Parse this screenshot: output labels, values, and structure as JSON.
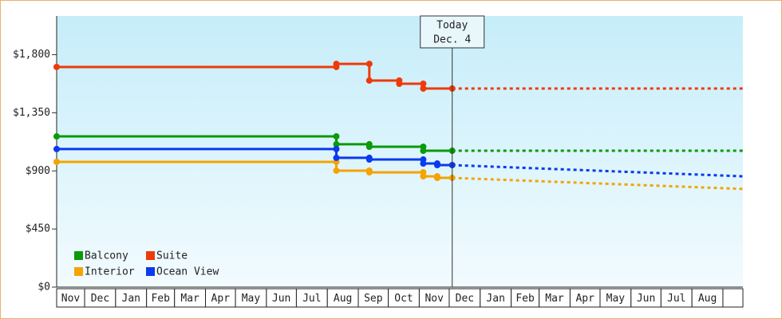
{
  "chart_data": {
    "type": "step",
    "ylim": [
      0,
      2100
    ],
    "yticks": [
      {
        "value": 0,
        "label": "$0"
      },
      {
        "value": 450,
        "label": "$450"
      },
      {
        "value": 900,
        "label": "$900"
      },
      {
        "value": 1350,
        "label": "$1,350"
      },
      {
        "value": 1800,
        "label": "$1,800"
      }
    ],
    "xlim": [
      2,
      689
    ],
    "xticks": [
      {
        "value": 0,
        "label": "Nov"
      },
      {
        "value": 30,
        "label": "Dec"
      },
      {
        "value": 61,
        "label": "Jan"
      },
      {
        "value": 92,
        "label": "Feb"
      },
      {
        "value": 120,
        "label": "Mar"
      },
      {
        "value": 151,
        "label": "Apr"
      },
      {
        "value": 181,
        "label": "May"
      },
      {
        "value": 212,
        "label": "Jun"
      },
      {
        "value": 242,
        "label": "Jul"
      },
      {
        "value": 273,
        "label": "Aug"
      },
      {
        "value": 304,
        "label": "Sep"
      },
      {
        "value": 334,
        "label": "Oct"
      },
      {
        "value": 365,
        "label": "Nov"
      },
      {
        "value": 395,
        "label": "Dec"
      },
      {
        "value": 426,
        "label": "Jan"
      },
      {
        "value": 457,
        "label": "Feb"
      },
      {
        "value": 485,
        "label": "Mar"
      },
      {
        "value": 516,
        "label": "Apr"
      },
      {
        "value": 546,
        "label": "May"
      },
      {
        "value": 577,
        "label": "Jun"
      },
      {
        "value": 607,
        "label": "Jul"
      },
      {
        "value": 638,
        "label": "Aug"
      }
    ],
    "today": {
      "x": 398,
      "label": "Today",
      "date": "Dec. 4"
    },
    "legend": "lower left",
    "series": [
      {
        "name": "Balcony",
        "color": "#0a9a0a",
        "x": [
          2,
          282,
          315,
          369,
          398
        ],
        "values": [
          1167,
          1106,
          1087,
          1056,
          1056
        ],
        "forecast": {
          "x": [
            398,
            689
          ],
          "values": [
            1056,
            1056
          ]
        }
      },
      {
        "name": "Suite",
        "color": "#ee3a0a",
        "x": [
          2,
          282,
          315,
          345,
          369,
          398
        ],
        "values": [
          1705,
          1729,
          1600,
          1575,
          1538,
          1538
        ],
        "forecast": {
          "x": [
            398,
            689
          ],
          "values": [
            1538,
            1538
          ]
        }
      },
      {
        "name": "Interior",
        "color": "#f5a300",
        "x": [
          2,
          282,
          315,
          369,
          383,
          398
        ],
        "values": [
          970,
          902,
          889,
          858,
          846,
          846
        ],
        "forecast": {
          "x": [
            398,
            689
          ],
          "values": [
            846,
            760
          ]
        }
      },
      {
        "name": "Ocean View",
        "color": "#0a3aee",
        "x": [
          2,
          282,
          315,
          369,
          383,
          398
        ],
        "values": [
          1069,
          1001,
          988,
          957,
          945,
          945
        ],
        "forecast": {
          "x": [
            398,
            689
          ],
          "values": [
            945,
            858
          ]
        }
      }
    ]
  }
}
